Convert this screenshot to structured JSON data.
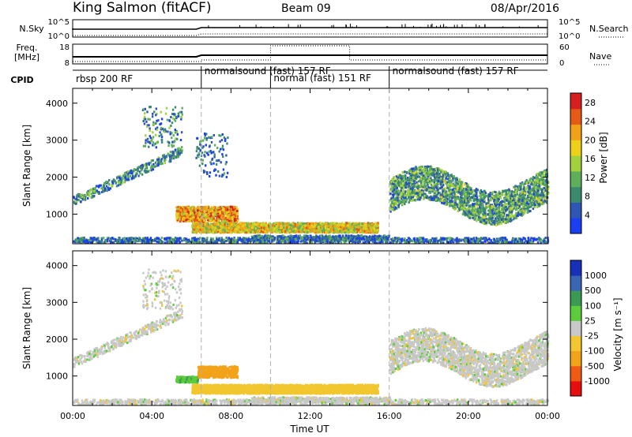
{
  "header": {
    "title": "King Salmon (fitACF)",
    "beam": "Beam 09",
    "date": "08/Apr/2016"
  },
  "nsky_panel": {
    "left_label": "N.Sky",
    "left_ticks": [
      "10^5",
      "10^0"
    ],
    "right_label": "N.Search",
    "right_ticks": [
      "10^5",
      "10^0"
    ]
  },
  "freq_panel": {
    "left_label_line1": "Freq.",
    "left_label_line2": "[MHz]",
    "left_ticks": [
      "18",
      "8"
    ],
    "right_label": "Nave",
    "right_ticks": [
      "60",
      "0"
    ]
  },
  "cpid_panel": {
    "label": "CPID",
    "segments": [
      {
        "start_hour": 0,
        "text": "rbsp 200 RF"
      },
      {
        "start_hour": 6.5,
        "text": "normalsound (fast) 157 RF"
      },
      {
        "start_hour": 10,
        "text": "normal (fast) 151 RF"
      },
      {
        "start_hour": 16,
        "text": "normalsound (fast) 157 RF"
      }
    ]
  },
  "colors": {
    "power_scale": [
      "#1a3ff2",
      "#2f56b4",
      "#3c8a6e",
      "#5fae5b",
      "#9fd23c",
      "#ecd01a",
      "#f2a018",
      "#e55a14",
      "#d81f1f"
    ],
    "velocity_scale": [
      "#e60e0e",
      "#ef5a14",
      "#f2a31a",
      "#f2c62e",
      "#c8c8c8",
      "#5ccc3c",
      "#3a9a52",
      "#3a64b4",
      "#1830b8"
    ]
  },
  "chart_data": [
    {
      "type": "heatmap",
      "name": "power",
      "xlabel": "",
      "ylabel": "Slant Range [km]",
      "xlim": [
        0,
        24
      ],
      "ylim": [
        200,
        4400
      ],
      "yticks": [
        "1000",
        "2000",
        "3000",
        "4000"
      ],
      "colorbar_label": "Power [dB]",
      "colorbar_ticks": [
        "4",
        "8",
        "12",
        "16",
        "20",
        "24",
        "28"
      ],
      "colorbar_range": [
        0,
        30
      ],
      "scatter_regions": [
        {
          "desc": "arc",
          "x_range": [
            0,
            5.5
          ],
          "y_start": 1350,
          "y_end": 2700,
          "value": 8
        },
        {
          "desc": "patch",
          "x_range": [
            3.5,
            5.5
          ],
          "y_range": [
            2800,
            3900
          ],
          "value": 8
        },
        {
          "desc": "patch",
          "x_range": [
            6.2,
            7.8
          ],
          "y_range": [
            2000,
            3200
          ],
          "value": 6
        },
        {
          "desc": "band",
          "x_range": [
            5.2,
            8.3
          ],
          "y_range": [
            800,
            1200
          ],
          "value": 22
        },
        {
          "desc": "band",
          "x_range": [
            6,
            15.4
          ],
          "y_range": [
            500,
            760
          ],
          "value": 18
        },
        {
          "desc": "strip",
          "x_range": [
            9,
            16
          ],
          "y_range": [
            300,
            420
          ],
          "value": 6
        },
        {
          "desc": "cloud",
          "x_range": [
            16,
            24
          ],
          "y_range": [
            1000,
            2300
          ],
          "value": 10
        },
        {
          "desc": "ground",
          "x_range": [
            0,
            24
          ],
          "y_range": [
            220,
            360
          ],
          "value": 6
        }
      ]
    },
    {
      "type": "heatmap",
      "name": "velocity",
      "xlabel": "Time UT",
      "ylabel": "Slant Range [km]",
      "xlim": [
        0,
        24
      ],
      "ylim": [
        200,
        4400
      ],
      "x_ticks": [
        "00:00",
        "04:00",
        "08:00",
        "12:00",
        "16:00",
        "20:00",
        "00:00"
      ],
      "yticks": [
        "1000",
        "2000",
        "3000",
        "4000"
      ],
      "colorbar_label": "Velocity [m s⁻¹]",
      "colorbar_ticks": [
        "1000",
        "500",
        "100",
        "25",
        "-25",
        "-100",
        "-500",
        "-1000"
      ],
      "scatter_regions": [
        {
          "desc": "arc",
          "x_range": [
            0,
            5.5
          ],
          "y_start": 1350,
          "y_end": 2700,
          "value": 0
        },
        {
          "desc": "patch",
          "x_range": [
            3.5,
            5.5
          ],
          "y_range": [
            2800,
            3900
          ],
          "value": 0
        },
        {
          "desc": "band",
          "x_range": [
            5.2,
            6.3
          ],
          "y_range": [
            820,
            980
          ],
          "value": 80
        },
        {
          "desc": "band",
          "x_range": [
            6.3,
            8.3
          ],
          "y_range": [
            950,
            1260
          ],
          "value": -400
        },
        {
          "desc": "band",
          "x_range": [
            6,
            15.4
          ],
          "y_range": [
            520,
            760
          ],
          "value": -60
        },
        {
          "desc": "strip",
          "x_range": [
            9,
            16
          ],
          "y_range": [
            300,
            420
          ],
          "value": 0
        },
        {
          "desc": "cloud",
          "x_range": [
            16,
            24
          ],
          "y_range": [
            1100,
            2000
          ],
          "value": 0
        },
        {
          "desc": "ground",
          "x_range": [
            0,
            24
          ],
          "y_range": [
            220,
            360
          ],
          "value": 0
        }
      ]
    }
  ]
}
